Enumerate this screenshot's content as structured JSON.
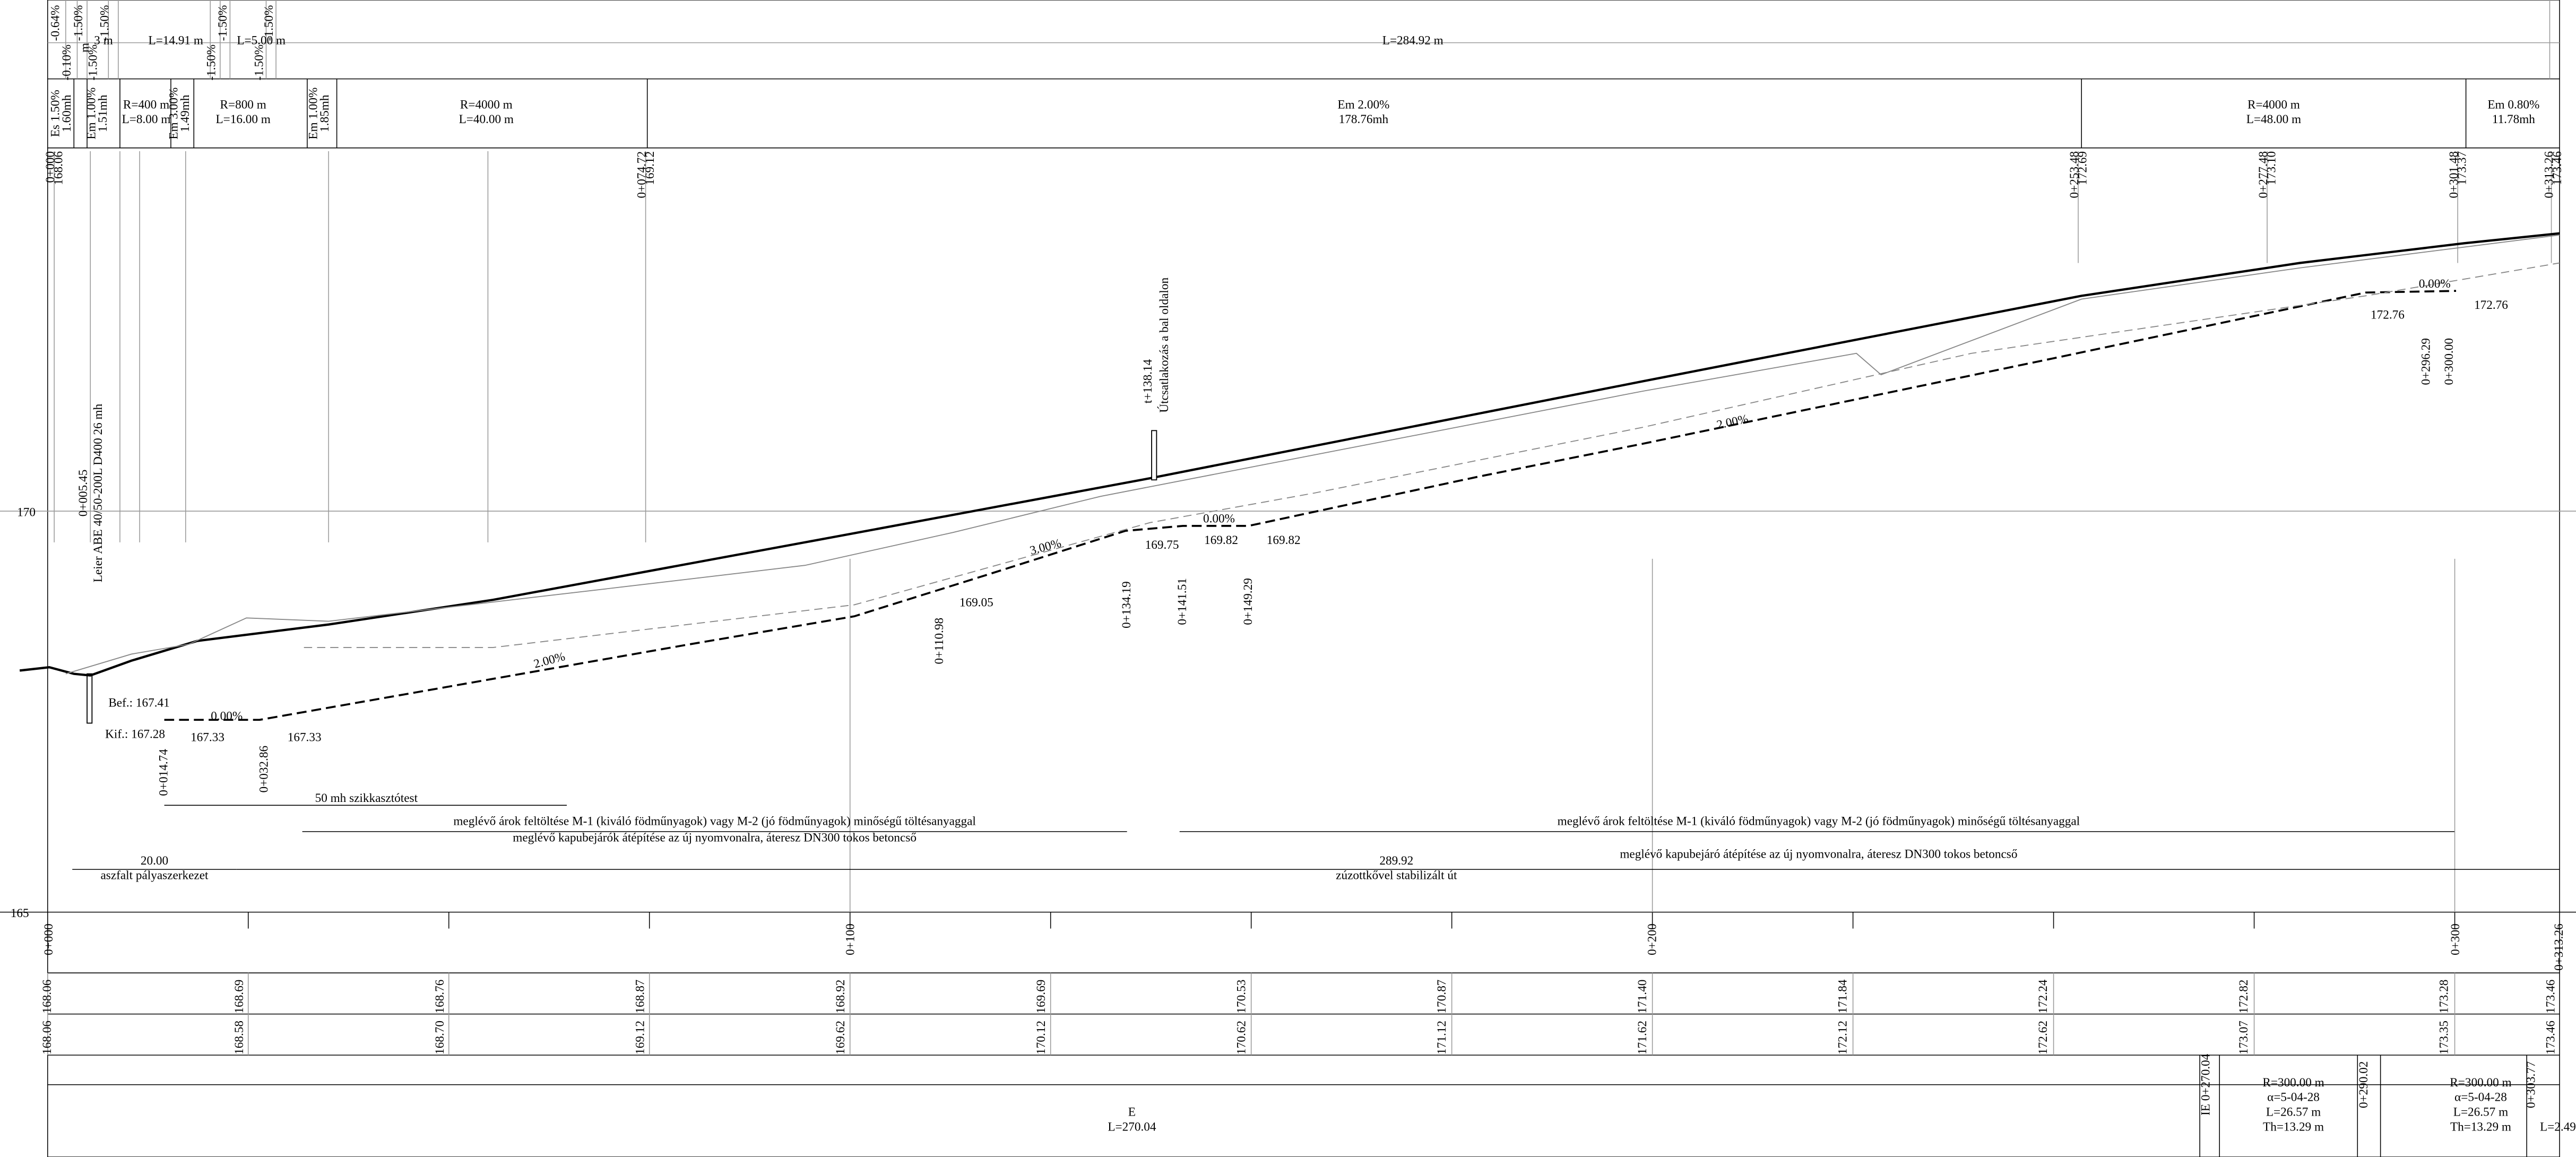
{
  "header": {
    "lengths": [
      "L=14.91 m",
      "L=5.00 m",
      "L=284.92 m"
    ],
    "grades": [
      "-0.64%",
      "-0.10%",
      "-1.50%",
      "-1.50%",
      "-1.50%",
      "-1.50%",
      "-1.50%",
      "-1.50%",
      "-1.50%"
    ],
    "widths": [
      "m",
      "3 m"
    ]
  },
  "vertical_alignment": [
    [
      "Es 1.50%",
      "1.60mh"
    ],
    [
      "Em 1.00%",
      "1.51mh"
    ],
    [
      "R=400 m",
      "L=8.00 m"
    ],
    [
      "Em 3.00%",
      "1.49mh"
    ],
    [
      "R=800 m",
      "L=16.00 m"
    ],
    [
      "Em 1.00%",
      "1.85mh"
    ],
    [
      "R=4000 m",
      "L=40.00 m"
    ],
    [
      "Em 2.00%",
      "178.76mh"
    ],
    [
      "R=4000 m",
      "L=48.00 m"
    ],
    [
      "Em 0.80%",
      "11.78mh"
    ]
  ],
  "points": [
    [
      "0+000",
      "168.06"
    ],
    [
      "0+074.72",
      "169.12"
    ],
    [
      "0+253.48",
      "172.69"
    ],
    [
      "0+277.48",
      "173.10"
    ],
    [
      "0+301.48",
      "173.37"
    ],
    [
      "0+313.26",
      "173.46"
    ]
  ],
  "profile": {
    "elevations": [
      170,
      165
    ],
    "stations": [
      "0+000",
      "0+100",
      "0+200",
      "0+300",
      "0+313.26"
    ],
    "annotations": [
      "0+005.45",
      "Leier ABE 40/50-200L D400 26 mh",
      "Bef.: 167.41",
      "Kif.: 167.28",
      "0.00%",
      "167.33",
      "167.33",
      "0+014.74",
      "0+032.86",
      "2.00%",
      "169.05",
      "3.00%",
      "0+110.98",
      "0+134.19",
      "169.75",
      "0+141.51",
      "169.82",
      "0.00%",
      "169.82",
      "0+149.29",
      "t+138.14",
      "Útcsatlakozás a bal oldalon",
      "2.00%",
      "0.00%",
      "172.76",
      "172.76",
      "0+296.29",
      "0+300.00",
      "50 mh szikkasztótest",
      "meglévő árok feltöltése M-1 (kiváló födműnyagok) vagy M-2 (jó födműnyagok) minőségű töltésanyaggal",
      "meglévő kapubejárók átépítése az új nyomvonalra, áteresz DN300 tokos betoncső",
      "meglévő árok feltöltése M-1 (kiváló födműnyagok) vagy M-2 (jó födműnyagok) minőségű töltésanyaggal",
      "meglévő kapubejáró átépítése az új nyomvonalra, áteresz DN300 tokos betoncső",
      "20.00",
      "aszfalt pályaszerkezet",
      "289.92",
      "zúzottkővel stabilizált út"
    ]
  },
  "rows": {
    "design": [
      "168.06",
      "168.69",
      "168.76",
      "168.87",
      "168.92",
      "169.69",
      "170.53",
      "170.87",
      "171.40",
      "171.84",
      "172.24",
      "172.82",
      "173.28",
      "173.46"
    ],
    "terrain": [
      "168.06",
      "168.58",
      "168.70",
      "169.12",
      "169.62",
      "170.12",
      "170.62",
      "171.12",
      "171.62",
      "172.12",
      "172.62",
      "173.07",
      "173.35",
      "173.46"
    ]
  },
  "horizontal_alignment": {
    "tangent": [
      "E",
      "L=270.04"
    ],
    "curves": [
      [
        "R=300.00 m",
        "α=5-04-28",
        "L=26.57 m",
        "Th=13.29 m"
      ],
      [
        "R=300.00 m",
        "α=5-04-28",
        "L=26.57 m",
        "Th=13.29 m"
      ]
    ],
    "end": "L=2.49",
    "points": [
      "IE 0+270.04",
      "0+290.02",
      "0+303.77"
    ]
  }
}
